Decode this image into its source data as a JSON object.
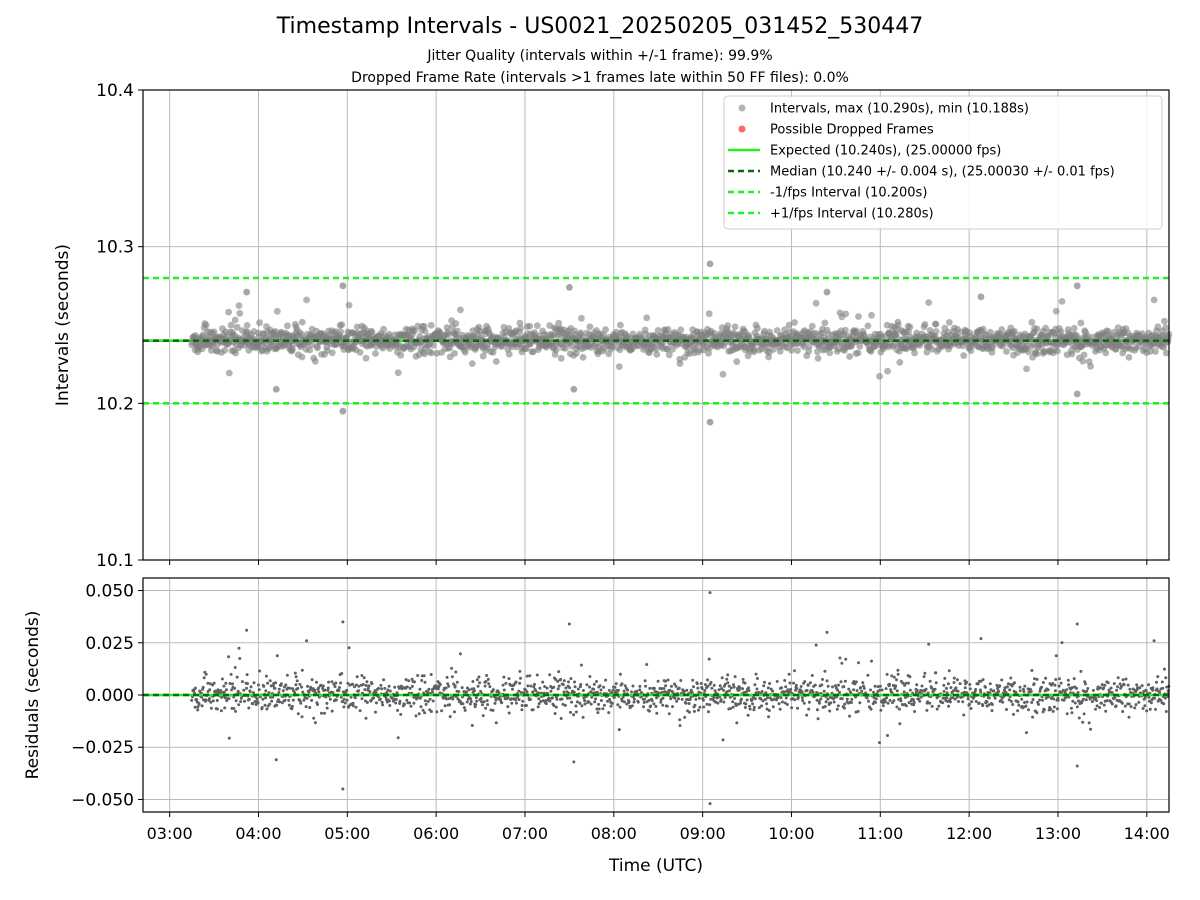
{
  "title": "Timestamp Intervals - US0021_20250205_031452_530447",
  "subtitle_1": "Jitter Quality (intervals within +/-1 frame): 99.9%",
  "subtitle_2": "Dropped Frame Rate (intervals >1 frames late within 50 FF files): 0.0%",
  "colors": {
    "points": "#808080",
    "dropped": "#ff6666",
    "expected": "#22ee22",
    "median": "#116611",
    "bounds": "#22ee22",
    "grid": "#bbbbbb"
  },
  "chart_data": [
    {
      "type": "scatter",
      "panel": "intervals",
      "ylabel": "Intervals (seconds)",
      "xlabel": "",
      "ylim": [
        10.1,
        10.4
      ],
      "yticks": [
        "10.1",
        "10.2",
        "10.3",
        "10.4"
      ],
      "xlim": [
        "02:42",
        "14:15"
      ],
      "xticks": [
        "03:00",
        "04:00",
        "05:00",
        "06:00",
        "07:00",
        "08:00",
        "09:00",
        "10:00",
        "11:00",
        "12:00",
        "13:00",
        "14:00"
      ],
      "grid": true,
      "legend_placement": "top-right",
      "legend": [
        "Intervals, max (10.290s), min (10.188s)",
        "Possible Dropped Frames",
        "Expected (10.240s), (25.00000 fps)",
        "Median (10.240 +/- 0.004 s), (25.00030 +/- 0.01 fps)",
        "-1/fps Interval (10.200s)",
        "+1/fps Interval (10.280s)"
      ],
      "expected": 10.24,
      "median": 10.24,
      "lower_bound": 10.2,
      "upper_bound": 10.28,
      "max_interval": 10.29,
      "min_interval": 10.188,
      "series": [
        {
          "name": "Intervals, max (10.290s), min (10.188s)",
          "style": "points",
          "x_start": "03:15",
          "x_end": "14:15",
          "center": 10.24,
          "typical_spread": 0.004,
          "outliers": [
            {
              "x": "09:05",
              "y": 10.289
            },
            {
              "x": "09:05",
              "y": 10.188
            },
            {
              "x": "04:57",
              "y": 10.275
            },
            {
              "x": "04:57",
              "y": 10.195
            },
            {
              "x": "13:13",
              "y": 10.275
            },
            {
              "x": "13:13",
              "y": 10.206
            },
            {
              "x": "03:52",
              "y": 10.271
            },
            {
              "x": "10:24",
              "y": 10.271
            },
            {
              "x": "12:08",
              "y": 10.268
            },
            {
              "x": "07:30",
              "y": 10.274
            },
            {
              "x": "07:33",
              "y": 10.209
            },
            {
              "x": "04:12",
              "y": 10.209
            }
          ]
        },
        {
          "name": "Possible Dropped Frames",
          "style": "points",
          "count": 0
        }
      ]
    },
    {
      "type": "scatter",
      "panel": "residuals",
      "ylabel": "Residuals (seconds)",
      "xlabel": "Time (UTC)",
      "ylim": [
        -0.056,
        0.056
      ],
      "yticks": [
        "−0.050",
        "−0.025",
        "0.000",
        "0.025",
        "0.050"
      ],
      "xlim": [
        "02:42",
        "14:15"
      ],
      "xticks": [
        "03:00",
        "04:00",
        "05:00",
        "06:00",
        "07:00",
        "08:00",
        "09:00",
        "10:00",
        "11:00",
        "12:00",
        "13:00",
        "14:00"
      ],
      "grid": true,
      "reference_line": 0.0,
      "series": [
        {
          "name": "Residuals",
          "style": "points",
          "x_start": "03:15",
          "x_end": "14:15",
          "center": 0.0,
          "typical_spread": 0.004,
          "outliers": [
            {
              "x": "09:05",
              "y": 0.049
            },
            {
              "x": "09:05",
              "y": -0.052
            },
            {
              "x": "04:57",
              "y": 0.035
            },
            {
              "x": "04:57",
              "y": -0.045
            },
            {
              "x": "13:13",
              "y": 0.034
            },
            {
              "x": "13:13",
              "y": -0.034
            },
            {
              "x": "03:52",
              "y": 0.031
            },
            {
              "x": "10:24",
              "y": 0.03
            },
            {
              "x": "12:08",
              "y": 0.027
            },
            {
              "x": "07:30",
              "y": 0.034
            },
            {
              "x": "07:33",
              "y": -0.032
            },
            {
              "x": "04:12",
              "y": -0.031
            }
          ]
        }
      ]
    }
  ]
}
